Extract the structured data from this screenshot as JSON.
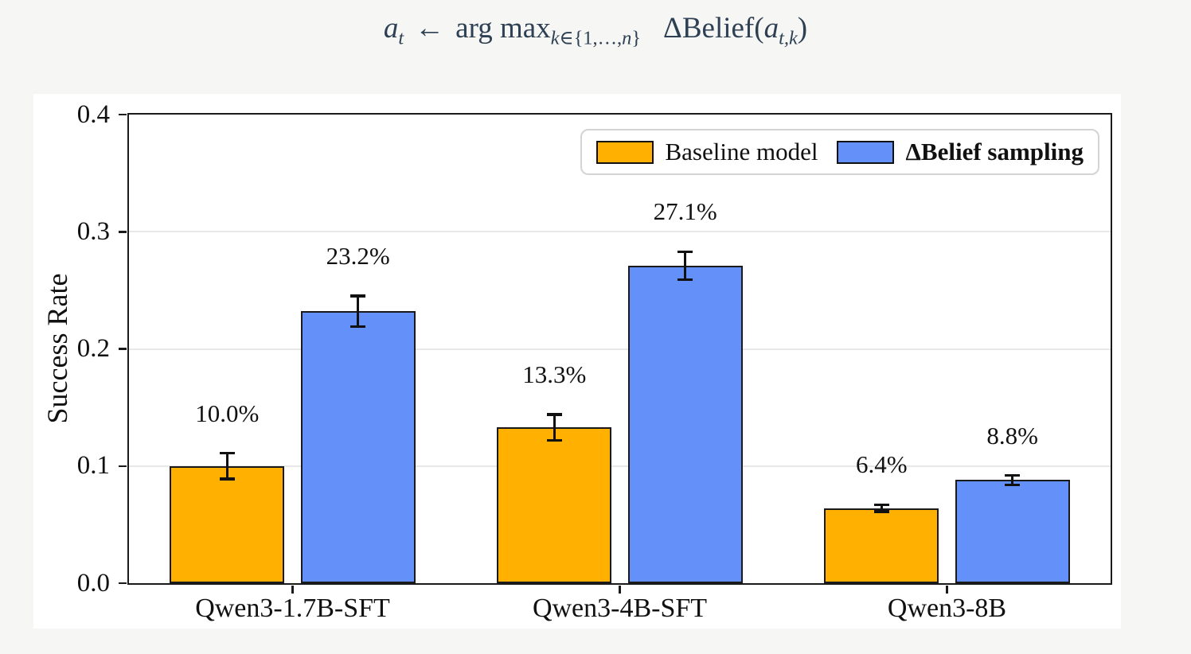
{
  "colors": {
    "title_text": "#2e4053",
    "baseline_orange": "#ffb000",
    "belief_blue": "#6490fa",
    "grid": "#e8e8e8",
    "axis": "#1a1a1a",
    "canvas_background": "#f6f6f4",
    "card_background": "#ffffff"
  },
  "title": {
    "var": "a",
    "var_sub": "t",
    "arrow": "←",
    "operator": "arg max",
    "sub_k": "k",
    "sub_in": "∈{1,…,",
    "sub_n": "n",
    "sub_close": "}",
    "delta": "Δ",
    "belief": "Belief",
    "paren_open": "(",
    "arg": "a",
    "arg_sub": "t,k",
    "paren_close": ")"
  },
  "chart_data": {
    "type": "bar",
    "title": "a_t ← arg max_{k∈{1,…,n}} ΔBelief(a_{t,k})",
    "categories": [
      "Qwen3-1.7B-SFT",
      "Qwen3-4B-SFT",
      "Qwen3-8B"
    ],
    "series": [
      {
        "name": "Baseline model",
        "color": "#ffb000",
        "values": [
          0.1,
          0.133,
          0.064
        ],
        "errors": [
          0.011,
          0.011,
          0.003
        ],
        "labels": [
          "10.0%",
          "13.3%",
          "6.4%"
        ],
        "offset": -0.2
      },
      {
        "name": "ΔBelief sampling",
        "color": "#6490fa",
        "values": [
          0.232,
          0.271,
          0.088
        ],
        "errors": [
          0.013,
          0.012,
          0.004
        ],
        "labels": [
          "23.2%",
          "27.1%",
          "8.8%"
        ],
        "offset": 0.2
      }
    ],
    "bar_width": 0.35,
    "xlabel": "",
    "ylabel": "Success Rate",
    "ylim": [
      0.0,
      0.4
    ],
    "xlim": [
      -0.5,
      2.5
    ],
    "yticks": [
      {
        "v": 0.0,
        "label": "0.0"
      },
      {
        "v": 0.1,
        "label": "0.1"
      },
      {
        "v": 0.2,
        "label": "0.2"
      },
      {
        "v": 0.3,
        "label": "0.3"
      },
      {
        "v": 0.4,
        "label": "0.4"
      }
    ],
    "grid": true,
    "legend_position": "upper right"
  }
}
